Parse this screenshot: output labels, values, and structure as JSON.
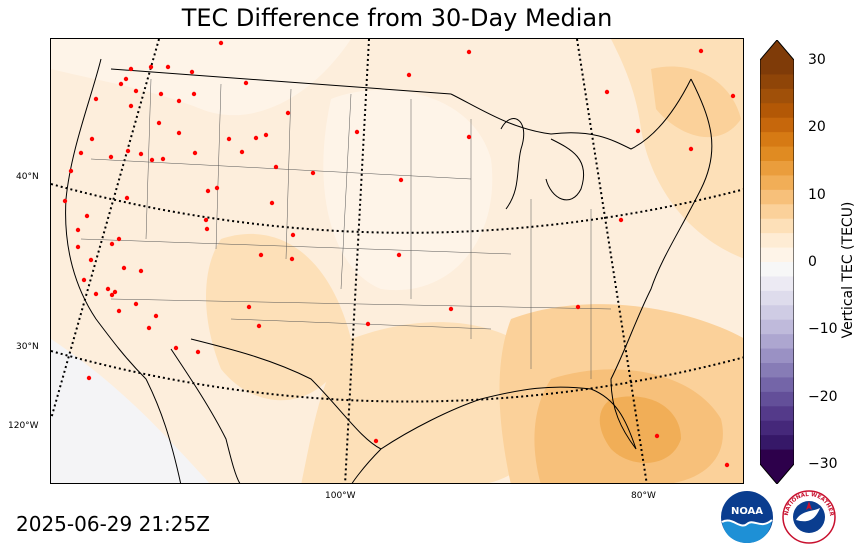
{
  "title": "TEC Difference from 30-Day Median",
  "timestamp": "2025-06-29 21:25Z",
  "colorbar": {
    "label": "Vertical TEC (TECU)",
    "ticks": [
      "30",
      "20",
      "10",
      "0",
      "−10",
      "−20",
      "−30"
    ],
    "min": -30,
    "max": 30,
    "colors_high": [
      "#7f3b08",
      "#8f4508",
      "#a05009",
      "#b35806",
      "#c6670c",
      "#d67a14",
      "#e08b22",
      "#ea9d3c",
      "#f1ae57",
      "#f7c07a",
      "#fbd19a",
      "#fde0b8",
      "#feecd4",
      "#fef4e8"
    ],
    "colors_low": [
      "#f7f7f7",
      "#eceaf3",
      "#dedcec",
      "#cfcce4",
      "#bfbadb",
      "#ada6d0",
      "#9a91c4",
      "#877cb6",
      "#7465a8",
      "#634f99",
      "#543a8a",
      "#45287a",
      "#361868",
      "#2d004b"
    ]
  },
  "latitude_labels": [
    "40°N",
    "30°N",
    "120°W"
  ],
  "longitude_labels": [
    "100°W",
    "80°W"
  ],
  "logos": [
    "noaa-logo",
    "national-weather-service-logo"
  ],
  "nws_logo_text": "NATIONAL WEATHER SERVICE",
  "noaa_logo_text": "NOAA"
}
